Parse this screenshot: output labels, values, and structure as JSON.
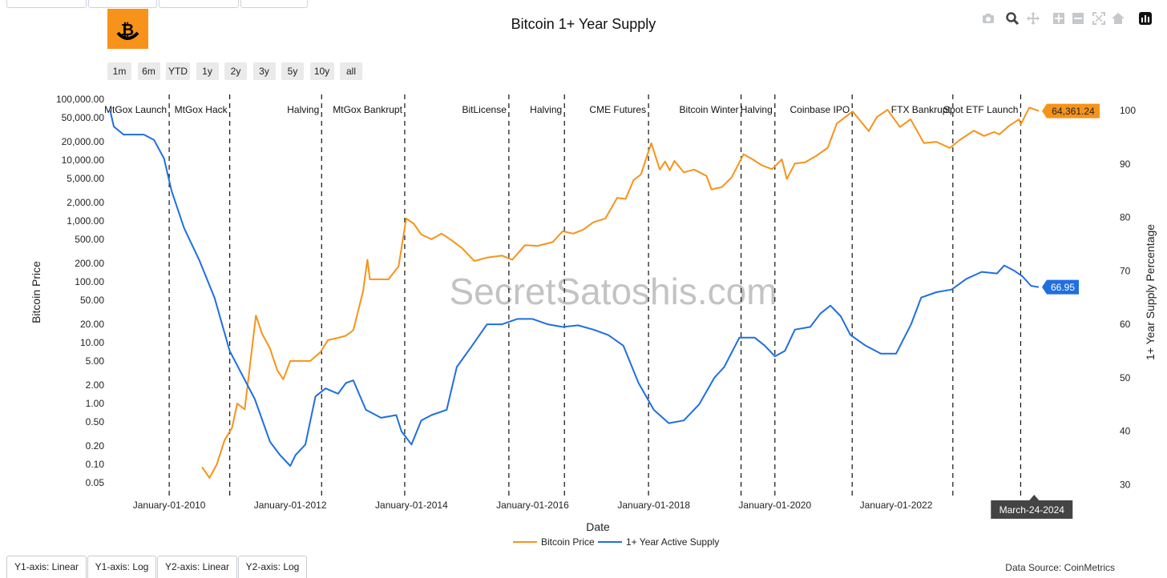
{
  "title": "Bitcoin 1+ Year Supply",
  "watermark": "SecretSatoshis.com",
  "range_buttons": [
    "1m",
    "6m",
    "YTD",
    "1y",
    "2y",
    "3y",
    "5y",
    "10y",
    "all"
  ],
  "modebar_icons": [
    "camera-icon",
    "zoom-icon",
    "pan-icon",
    "zoom-in-icon",
    "zoom-out-icon",
    "autoscale-icon",
    "reset-axes-icon",
    "plotly-logo-icon"
  ],
  "axis_tabs": [
    "Y1-axis: Linear",
    "Y1-axis: Log",
    "Y2-axis: Linear",
    "Y2-axis: Log"
  ],
  "data_source": "Data Source: CoinMetrics",
  "colors": {
    "price": "#f7931a",
    "supply": "#1f6fe0",
    "logo": "#f7931a"
  },
  "chart_data": {
    "type": "line",
    "title": "Bitcoin 1+ Year Supply",
    "xlabel": "Date",
    "ylabel": "Bitcoin Price",
    "y2label": "1+ Year Supply Percentage",
    "x_range": [
      "2009-01-03",
      "2024-05-10"
    ],
    "x_ticks": [
      "January-01-2010",
      "January-01-2012",
      "January-01-2014",
      "January-01-2016",
      "January-01-2018",
      "January-01-2020",
      "January-01-2022"
    ],
    "y_scale": "log",
    "y_ticks": [
      "100,000.00",
      "50,000.00",
      "20,000.00",
      "10,000.00",
      "5,000.00",
      "2,000.00",
      "1,000.00",
      "500.00",
      "200.00",
      "100.00",
      "50.00",
      "20.00",
      "10.00",
      "5.00",
      "2.00",
      "1.00",
      "0.50",
      "0.20",
      "0.10",
      "0.05"
    ],
    "y_tick_values": [
      100000,
      50000,
      20000,
      10000,
      5000,
      2000,
      1000,
      500,
      200,
      100,
      50,
      20,
      10,
      5,
      2,
      1,
      0.5,
      0.2,
      0.1,
      0.05
    ],
    "y2_range": [
      30,
      100
    ],
    "y2_ticks": [
      30,
      40,
      50,
      60,
      70,
      80,
      90,
      100
    ],
    "legend": "bottom-center",
    "grid": false,
    "events": [
      {
        "label": "MtGox Launch",
        "date": "2010-01-01"
      },
      {
        "label": "MtGox Hack",
        "date": "2011-01-01"
      },
      {
        "label": "Halving",
        "date": "2012-07-08"
      },
      {
        "label": "MtGox Bankrupt",
        "date": "2013-11-21"
      },
      {
        "label": "BitLicense",
        "date": "2015-08-11"
      },
      {
        "label": "Halving",
        "date": "2016-07-11"
      },
      {
        "label": "CME Futures",
        "date": "2017-11-30"
      },
      {
        "label": "Bitcoin Winter",
        "date": "2019-06-11"
      },
      {
        "label": "Halving",
        "date": "2020-01-01"
      },
      {
        "label": "Coinbase IPO",
        "date": "2021-04-11"
      },
      {
        "label": "FTX Bankrupt",
        "date": "2022-12-09"
      },
      {
        "label": "Spot ETF Launch",
        "date": "2024-01-22"
      }
    ],
    "series": [
      {
        "name": "Bitcoin Price",
        "axis": "y1",
        "color": "#f7931a",
        "last_label": "64,361.24",
        "points": [
          [
            "2010-07-18",
            0.09
          ],
          [
            "2010-09-01",
            0.06
          ],
          [
            "2010-10-15",
            0.1
          ],
          [
            "2010-12-01",
            0.25
          ],
          [
            "2011-01-15",
            0.4
          ],
          [
            "2011-02-15",
            1.0
          ],
          [
            "2011-04-01",
            0.8
          ],
          [
            "2011-05-15",
            8
          ],
          [
            "2011-06-08",
            28
          ],
          [
            "2011-07-15",
            14
          ],
          [
            "2011-09-01",
            8
          ],
          [
            "2011-10-15",
            3.5
          ],
          [
            "2011-11-20",
            2.5
          ],
          [
            "2012-01-01",
            5
          ],
          [
            "2012-03-01",
            5
          ],
          [
            "2012-05-01",
            5
          ],
          [
            "2012-07-01",
            7
          ],
          [
            "2012-08-15",
            11
          ],
          [
            "2012-10-15",
            12
          ],
          [
            "2012-12-01",
            13
          ],
          [
            "2013-01-15",
            16
          ],
          [
            "2013-03-15",
            70
          ],
          [
            "2013-04-10",
            230
          ],
          [
            "2013-04-25",
            110
          ],
          [
            "2013-06-15",
            110
          ],
          [
            "2013-08-15",
            110
          ],
          [
            "2013-10-15",
            180
          ],
          [
            "2013-11-30",
            1100
          ],
          [
            "2014-01-15",
            900
          ],
          [
            "2014-03-01",
            600
          ],
          [
            "2014-05-01",
            500
          ],
          [
            "2014-07-01",
            620
          ],
          [
            "2014-09-01",
            480
          ],
          [
            "2014-11-01",
            360
          ],
          [
            "2015-01-15",
            220
          ],
          [
            "2015-04-01",
            250
          ],
          [
            "2015-07-01",
            270
          ],
          [
            "2015-09-01",
            230
          ],
          [
            "2015-11-15",
            400
          ],
          [
            "2016-02-01",
            390
          ],
          [
            "2016-05-01",
            450
          ],
          [
            "2016-07-01",
            680
          ],
          [
            "2016-09-01",
            620
          ],
          [
            "2016-11-01",
            720
          ],
          [
            "2017-01-01",
            950
          ],
          [
            "2017-03-15",
            1100
          ],
          [
            "2017-05-25",
            2400
          ],
          [
            "2017-07-15",
            2300
          ],
          [
            "2017-09-01",
            4700
          ],
          [
            "2017-10-15",
            5800
          ],
          [
            "2017-12-17",
            19000
          ],
          [
            "2018-02-06",
            7000
          ],
          [
            "2018-03-10",
            9500
          ],
          [
            "2018-04-07",
            6800
          ],
          [
            "2018-05-05",
            9700
          ],
          [
            "2018-07-01",
            6300
          ],
          [
            "2018-09-01",
            7000
          ],
          [
            "2018-11-15",
            5500
          ],
          [
            "2018-12-15",
            3300
          ],
          [
            "2019-02-15",
            3600
          ],
          [
            "2019-04-15",
            5200
          ],
          [
            "2019-06-26",
            12500
          ],
          [
            "2019-08-15",
            10500
          ],
          [
            "2019-10-15",
            8200
          ],
          [
            "2019-12-15",
            7100
          ],
          [
            "2020-02-12",
            10300
          ],
          [
            "2020-03-13",
            4900
          ],
          [
            "2020-05-01",
            8800
          ],
          [
            "2020-07-01",
            9200
          ],
          [
            "2020-09-01",
            11500
          ],
          [
            "2020-11-15",
            16000
          ],
          [
            "2021-01-08",
            40000
          ],
          [
            "2021-04-14",
            63000
          ],
          [
            "2021-07-20",
            30000
          ],
          [
            "2021-09-07",
            51000
          ],
          [
            "2021-11-10",
            67000
          ],
          [
            "2022-01-24",
            35000
          ],
          [
            "2022-03-29",
            47000
          ],
          [
            "2022-06-18",
            19000
          ],
          [
            "2022-09-01",
            20000
          ],
          [
            "2022-11-21",
            15800
          ],
          [
            "2023-01-15",
            21000
          ],
          [
            "2023-04-14",
            30500
          ],
          [
            "2023-06-15",
            25000
          ],
          [
            "2023-08-15",
            29000
          ],
          [
            "2023-09-15",
            26500
          ],
          [
            "2023-11-15",
            37000
          ],
          [
            "2024-01-11",
            46600
          ],
          [
            "2024-01-23",
            39000
          ],
          [
            "2024-03-14",
            73000
          ],
          [
            "2024-04-10",
            69000
          ],
          [
            "2024-05-10",
            64361.24
          ]
        ]
      },
      {
        "name": "1+ Year Active Supply",
        "axis": "y2",
        "color": "#1f6fe0",
        "last_label": "66.95",
        "points": [
          [
            "2009-01-10",
            100
          ],
          [
            "2009-02-01",
            97
          ],
          [
            "2009-04-01",
            95.5
          ],
          [
            "2009-08-01",
            95.5
          ],
          [
            "2009-10-01",
            94.5
          ],
          [
            "2009-12-01",
            91
          ],
          [
            "2010-01-15",
            85
          ],
          [
            "2010-04-01",
            78
          ],
          [
            "2010-07-01",
            72
          ],
          [
            "2010-10-01",
            65
          ],
          [
            "2011-01-01",
            55
          ],
          [
            "2011-06-01",
            46
          ],
          [
            "2011-09-01",
            38
          ],
          [
            "2011-11-01",
            35.5
          ],
          [
            "2012-01-01",
            33.5
          ],
          [
            "2012-02-01",
            35.5
          ],
          [
            "2012-04-01",
            37.5
          ],
          [
            "2012-06-01",
            46.5
          ],
          [
            "2012-08-01",
            48
          ],
          [
            "2012-10-15",
            47
          ],
          [
            "2012-12-01",
            49
          ],
          [
            "2013-01-15",
            49.5
          ],
          [
            "2013-04-01",
            44
          ],
          [
            "2013-07-01",
            42.5
          ],
          [
            "2013-10-01",
            43
          ],
          [
            "2013-11-01",
            40
          ],
          [
            "2014-01-01",
            37.5
          ],
          [
            "2014-03-01",
            42
          ],
          [
            "2014-05-01",
            43
          ],
          [
            "2014-08-01",
            44
          ],
          [
            "2014-10-01",
            52
          ],
          [
            "2015-01-01",
            56
          ],
          [
            "2015-04-01",
            60
          ],
          [
            "2015-07-01",
            60
          ],
          [
            "2015-10-01",
            61
          ],
          [
            "2016-01-01",
            61
          ],
          [
            "2016-04-01",
            60
          ],
          [
            "2016-07-01",
            59.5
          ],
          [
            "2016-10-01",
            59.8
          ],
          [
            "2017-01-01",
            59
          ],
          [
            "2017-04-01",
            58
          ],
          [
            "2017-07-01",
            56
          ],
          [
            "2017-10-01",
            49
          ],
          [
            "2018-01-01",
            44
          ],
          [
            "2018-04-01",
            41.5
          ],
          [
            "2018-07-01",
            42
          ],
          [
            "2018-10-01",
            45
          ],
          [
            "2019-01-01",
            50
          ],
          [
            "2019-03-01",
            52
          ],
          [
            "2019-06-01",
            57.5
          ],
          [
            "2019-09-01",
            57.5
          ],
          [
            "2019-11-01",
            56
          ],
          [
            "2020-01-01",
            54
          ],
          [
            "2020-03-01",
            55
          ],
          [
            "2020-05-01",
            59
          ],
          [
            "2020-08-01",
            59.5
          ],
          [
            "2020-10-01",
            62
          ],
          [
            "2020-12-01",
            63.5
          ],
          [
            "2021-02-01",
            61.5
          ],
          [
            "2021-04-01",
            58
          ],
          [
            "2021-07-01",
            56
          ],
          [
            "2021-10-01",
            54.5
          ],
          [
            "2022-01-01",
            54.5
          ],
          [
            "2022-04-01",
            60
          ],
          [
            "2022-06-01",
            65
          ],
          [
            "2022-09-01",
            66
          ],
          [
            "2022-12-01",
            66.5
          ],
          [
            "2023-03-01",
            68.5
          ],
          [
            "2023-06-01",
            69.8
          ],
          [
            "2023-09-01",
            69.5
          ],
          [
            "2023-10-15",
            71
          ],
          [
            "2023-12-15",
            70
          ],
          [
            "2024-02-01",
            69
          ],
          [
            "2024-03-24",
            67.2
          ],
          [
            "2024-05-10",
            66.95
          ]
        ]
      }
    ],
    "hover_label": "March-24-2024"
  }
}
